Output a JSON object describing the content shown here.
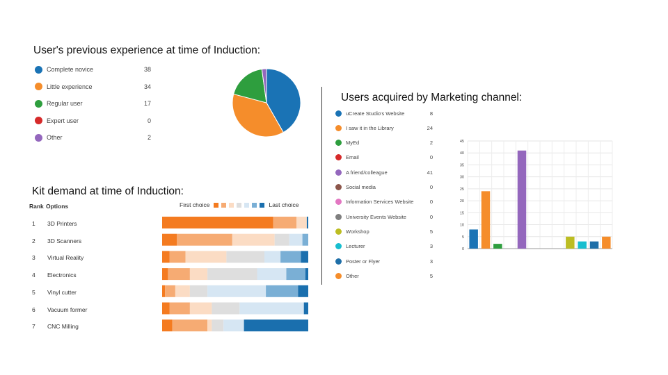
{
  "experience": {
    "title": "User's previous experience at time of Induction:",
    "items": [
      {
        "label": "Complete novice",
        "value": "38",
        "color": "#1a73b5"
      },
      {
        "label": "Little experience",
        "value": "34",
        "color": "#f58d2b"
      },
      {
        "label": "Regular user",
        "value": "17",
        "color": "#2e9e3e"
      },
      {
        "label": "Expert user",
        "value": "0",
        "color": "#d62a2a"
      },
      {
        "label": "Other",
        "value": "2",
        "color": "#9467bd"
      }
    ]
  },
  "marketing": {
    "title": "Users acquired by Marketing channel:",
    "items": [
      {
        "label": "uCreate Studio's Website",
        "value": "8",
        "color": "#1a73b5"
      },
      {
        "label": "I saw it in the Library",
        "value": "24",
        "color": "#f58d2b"
      },
      {
        "label": "MyEd",
        "value": "2",
        "color": "#2e9e3e"
      },
      {
        "label": "Email",
        "value": "0",
        "color": "#d62a2a"
      },
      {
        "label": "A friend/colleague",
        "value": "41",
        "color": "#9467bd"
      },
      {
        "label": "Social media",
        "value": "0",
        "color": "#8c564b"
      },
      {
        "label": "Information Services Website",
        "value": "0",
        "color": "#e377c2"
      },
      {
        "label": "University Events Website",
        "value": "0",
        "color": "#7f7f7f"
      },
      {
        "label": "Workshop",
        "value": "5",
        "color": "#bcbd22"
      },
      {
        "label": "Lecturer",
        "value": "3",
        "color": "#17becf"
      },
      {
        "label": "Poster or Flyer",
        "value": "3",
        "color": "#1f6fa8"
      },
      {
        "label": "Other",
        "value": "5",
        "color": "#f58d2b"
      }
    ]
  },
  "kit": {
    "title": "Kit demand at time of Induction:",
    "rank_header": "Rank",
    "options_header": "Options",
    "first_choice": "First choice",
    "last_choice": "Last choice",
    "scale_colors": [
      "#f47b20",
      "#f6ab73",
      "#fbdcc4",
      "#dedede",
      "#d6e6f3",
      "#7aafd5",
      "#1a6fae"
    ],
    "rows": [
      {
        "rank": "1",
        "label": "3D Printers"
      },
      {
        "rank": "2",
        "label": "3D Scanners"
      },
      {
        "rank": "3",
        "label": "Virtual Reality"
      },
      {
        "rank": "4",
        "label": "Electronics"
      },
      {
        "rank": "5",
        "label": "Vinyl cutter"
      },
      {
        "rank": "6",
        "label": "Vacuum former"
      },
      {
        "rank": "7",
        "label": "CNC Milling"
      }
    ]
  },
  "chart_data": [
    {
      "type": "pie",
      "title": "User's previous experience at time of Induction:",
      "categories": [
        "Complete novice",
        "Little experience",
        "Regular user",
        "Expert user",
        "Other"
      ],
      "values": [
        38,
        34,
        17,
        0,
        2
      ]
    },
    {
      "type": "bar",
      "title": "Users acquired by Marketing channel:",
      "categories": [
        "uCreate Studio's Website",
        "I saw it in the Library",
        "MyEd",
        "Email",
        "A friend/colleague",
        "Social media",
        "Information Services Website",
        "University Events Website",
        "Workshop",
        "Lecturer",
        "Poster or Flyer",
        "Other"
      ],
      "values": [
        8,
        24,
        2,
        0,
        41,
        0,
        0,
        0,
        5,
        3,
        3,
        5
      ],
      "ylim": [
        0,
        45
      ],
      "yticks": [
        "0",
        "5",
        "10",
        "15",
        "20",
        "25",
        "30",
        "35",
        "40",
        "45"
      ],
      "grid": true
    },
    {
      "type": "bar",
      "stacked": true,
      "orientation": "horizontal",
      "title": "Kit demand at time of Induction:",
      "categories": [
        "3D Printers",
        "3D Scanners",
        "Virtual Reality",
        "Electronics",
        "Vinyl cutter",
        "Vacuum former",
        "CNC Milling"
      ],
      "series_labels": [
        "First choice",
        "Last choice"
      ],
      "ranks": 7,
      "shares": [
        [
          0.76,
          0.16,
          0.07,
          0.0,
          0.0,
          0.0,
          0.01
        ],
        [
          0.1,
          0.38,
          0.29,
          0.1,
          0.09,
          0.04,
          0.0
        ],
        [
          0.05,
          0.11,
          0.28,
          0.26,
          0.11,
          0.14,
          0.05
        ],
        [
          0.04,
          0.15,
          0.12,
          0.34,
          0.2,
          0.13,
          0.02
        ],
        [
          0.02,
          0.07,
          0.1,
          0.12,
          0.4,
          0.22,
          0.07
        ],
        [
          0.05,
          0.14,
          0.15,
          0.19,
          0.44,
          0.0,
          0.03
        ],
        [
          0.07,
          0.24,
          0.03,
          0.08,
          0.14,
          0.0,
          0.44
        ]
      ]
    }
  ]
}
